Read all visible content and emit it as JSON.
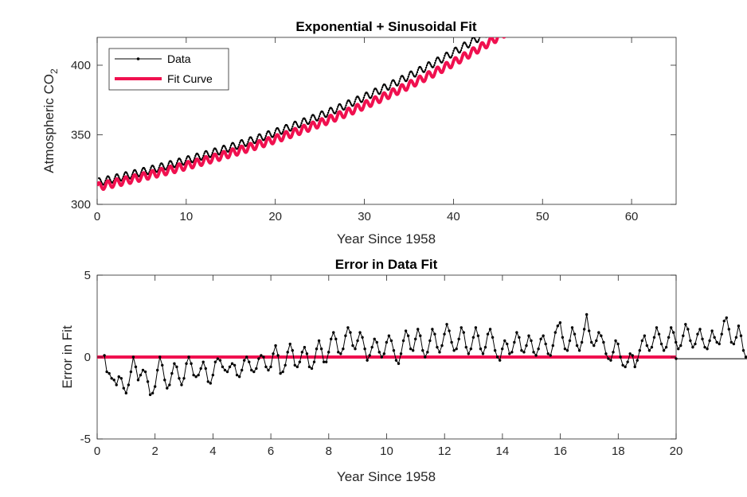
{
  "chart_data": [
    {
      "type": "line",
      "title": "Exponential + Sinusoidal Fit",
      "xlabel": "Year Since 1958",
      "ylabel_main": "Atmospheric CO",
      "ylabel_sub": "2",
      "xlim": [
        0,
        65
      ],
      "ylim": [
        300,
        420
      ],
      "xticks": [
        0,
        10,
        20,
        30,
        40,
        50,
        60
      ],
      "yticks": [
        300,
        350,
        400
      ],
      "legend": {
        "location": "top-left",
        "entries": [
          "Data",
          "Fit Curve"
        ]
      },
      "series": [
        {
          "name": "Data",
          "color": "#000000",
          "marker": "dot",
          "model": {
            "type": "exponential+sinusoidal",
            "a": 255.6,
            "b": 59.6,
            "rate": 0.02357,
            "amplitude": 2.7,
            "period": 1,
            "x_start": 0.2,
            "x_end": 64.8,
            "step": 0.0833,
            "offset": 0.6
          }
        },
        {
          "name": "Fit Curve",
          "color": "#f0104f",
          "model": {
            "type": "exponential+sinusoidal",
            "a": 255.6,
            "b": 57.0,
            "rate": 0.02357,
            "amplitude": 2.7,
            "period": 1,
            "x_start": 0,
            "x_end": 65,
            "step": 0.0333,
            "offset": 0
          }
        }
      ],
      "grid": false
    },
    {
      "type": "line",
      "title": "Error in Data Fit",
      "xlabel": "Year Since 1958",
      "ylabel": "Error in Fit",
      "xlim": [
        0,
        20
      ],
      "ylim": [
        -5,
        5
      ],
      "xticks": [
        0,
        2,
        4,
        6,
        8,
        10,
        12,
        14,
        16,
        18,
        20
      ],
      "yticks": [
        -5,
        0,
        5
      ],
      "series": [
        {
          "name": "Error",
          "color": "#000000",
          "marker": "dot",
          "x_start": 0.25,
          "step": 0.0833,
          "values": [
            0.1,
            -0.9,
            -1.0,
            -1.3,
            -1.4,
            -1.7,
            -1.2,
            -1.3,
            -1.9,
            -2.2,
            -1.7,
            -0.9,
            0.0,
            -0.6,
            -1.4,
            -1.1,
            -0.8,
            -0.9,
            -1.5,
            -2.3,
            -2.2,
            -1.8,
            -0.8,
            0.0,
            -0.5,
            -1.4,
            -1.9,
            -1.7,
            -1.0,
            -0.4,
            -0.6,
            -1.3,
            -1.7,
            -1.3,
            -0.4,
            0.0,
            -0.4,
            -1.1,
            -1.2,
            -1.1,
            -0.7,
            -0.3,
            -0.7,
            -1.5,
            -1.6,
            -1.1,
            -0.3,
            -0.1,
            -0.2,
            -0.6,
            -0.8,
            -0.9,
            -0.6,
            -0.4,
            -0.5,
            -1.1,
            -1.2,
            -0.8,
            -0.2,
            0.0,
            -0.3,
            -0.8,
            -0.9,
            -0.7,
            -0.1,
            0.1,
            0.0,
            -0.6,
            -0.8,
            -0.6,
            0.2,
            0.7,
            0.1,
            -1.0,
            -0.9,
            -0.5,
            0.3,
            0.8,
            0.4,
            -0.5,
            -0.6,
            -0.3,
            0.3,
            0.6,
            0.2,
            -0.6,
            -0.7,
            -0.3,
            0.5,
            1.0,
            0.5,
            -0.3,
            -0.3,
            0.3,
            1.1,
            1.5,
            1.1,
            0.3,
            0.2,
            0.5,
            1.3,
            1.8,
            1.5,
            0.7,
            0.5,
            1.0,
            1.5,
            1.2,
            0.5,
            -0.2,
            0.1,
            0.6,
            1.1,
            0.9,
            0.3,
            0.0,
            0.2,
            0.9,
            1.3,
            1.0,
            0.4,
            -0.2,
            -0.4,
            0.2,
            1.0,
            1.6,
            1.3,
            0.5,
            0.4,
            1.1,
            1.7,
            1.3,
            0.4,
            0.0,
            0.3,
            1.0,
            1.7,
            1.4,
            0.6,
            0.3,
            0.7,
            1.4,
            2.0,
            1.6,
            0.9,
            0.4,
            0.5,
            1.1,
            1.8,
            1.5,
            0.6,
            0.2,
            0.5,
            1.2,
            1.8,
            1.3,
            0.5,
            0.2,
            0.6,
            1.4,
            1.7,
            1.2,
            0.4,
            0.0,
            -0.2,
            0.5,
            1.0,
            0.8,
            0.2,
            0.3,
            0.9,
            1.5,
            1.2,
            0.4,
            0.3,
            0.7,
            1.3,
            1.0,
            0.3,
            0.1,
            0.5,
            1.1,
            1.3,
            0.8,
            0.2,
            0.1,
            0.7,
            1.5,
            1.9,
            2.1,
            1.2,
            0.5,
            0.4,
            1.0,
            1.8,
            1.4,
            0.7,
            0.4,
            0.9,
            1.7,
            2.6,
            1.6,
            0.9,
            0.7,
            1.0,
            1.5,
            1.3,
            0.9,
            0.2,
            -0.1,
            -0.2,
            0.3,
            1.0,
            0.8,
            0.0,
            -0.5,
            -0.6,
            -0.3,
            0.2,
            0.1,
            -0.6,
            -0.2,
            0.4,
            1.0,
            1.3,
            0.7,
            0.4,
            0.6,
            1.2,
            1.8,
            1.4,
            0.8,
            0.4,
            0.6,
            1.2,
            1.8,
            1.5,
            0.9,
            0.5,
            0.7,
            1.3,
            2.0,
            1.7,
            1.0,
            0.6,
            0.8,
            1.4,
            1.7,
            1.1,
            0.6,
            0.5,
            1.0,
            1.6,
            1.2,
            0.9,
            0.8,
            1.4,
            2.2,
            2.4,
            1.7,
            0.9,
            0.8,
            1.2,
            1.9,
            1.3,
            0.4,
            0.0,
            0.1,
            0.6,
            1.2,
            1.4,
            0.7,
            -0.1
          ],
          "marker_end": -0.1
        },
        {
          "name": "Zero Line",
          "color": "#f0104f",
          "values": [
            0,
            0
          ]
        }
      ],
      "grid": false
    }
  ]
}
